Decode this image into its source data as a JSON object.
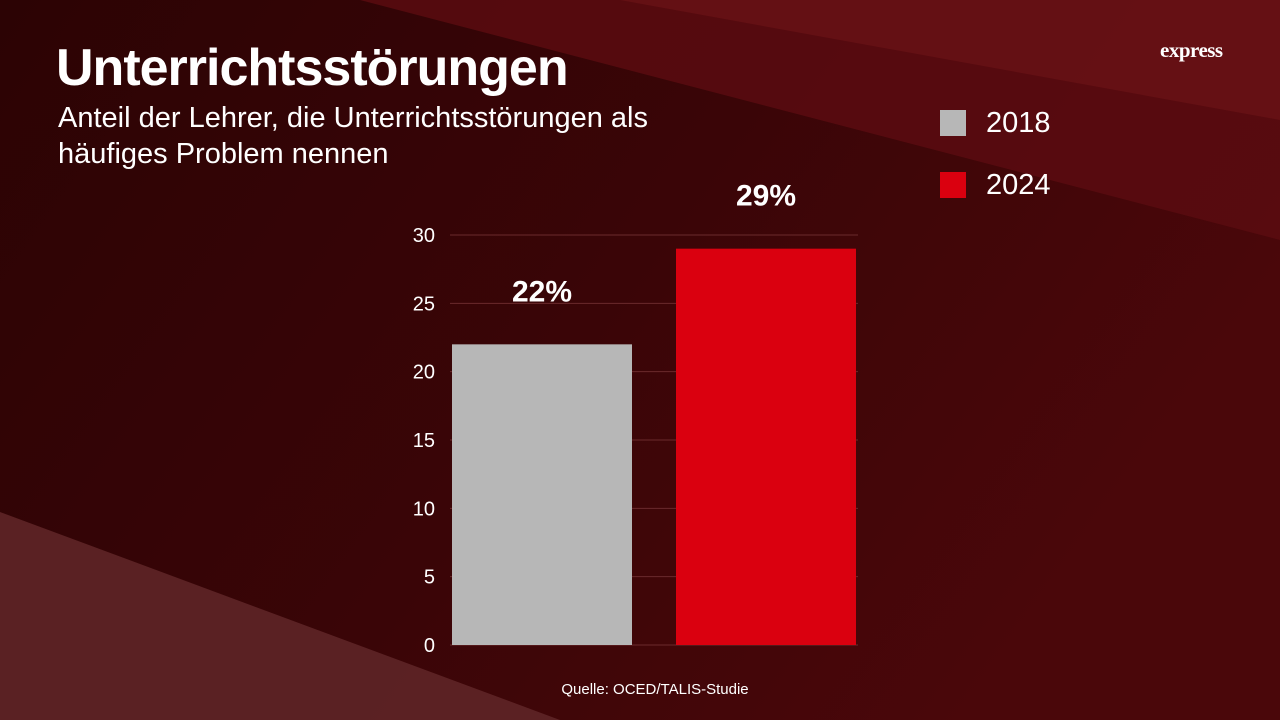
{
  "header": {
    "title": "Unterrichtsstörungen",
    "subtitle": "Anteil der Lehrer, die Unterrichtsstörungen als häufiges Problem nennen",
    "logo_text": "express"
  },
  "footer": {
    "source": "Quelle: OCED/TALIS-Studie"
  },
  "colors": {
    "background": "#330405",
    "series_2018": "#b7b7b7",
    "series_2024": "#da000f",
    "gridline": "#6a2a2c"
  },
  "chart_data": {
    "type": "bar",
    "categories": [
      "2018",
      "2024"
    ],
    "values": [
      22,
      29
    ],
    "data_labels": [
      "22%",
      "29%"
    ],
    "yticks": [
      "0",
      "5",
      "10",
      "15",
      "20",
      "25",
      "30"
    ],
    "ylim": [
      0,
      30
    ],
    "legend": [
      {
        "label": "2018",
        "color": "#b7b7b7"
      },
      {
        "label": "2024",
        "color": "#da000f"
      }
    ],
    "legend_position": "top-right",
    "grid": true
  }
}
